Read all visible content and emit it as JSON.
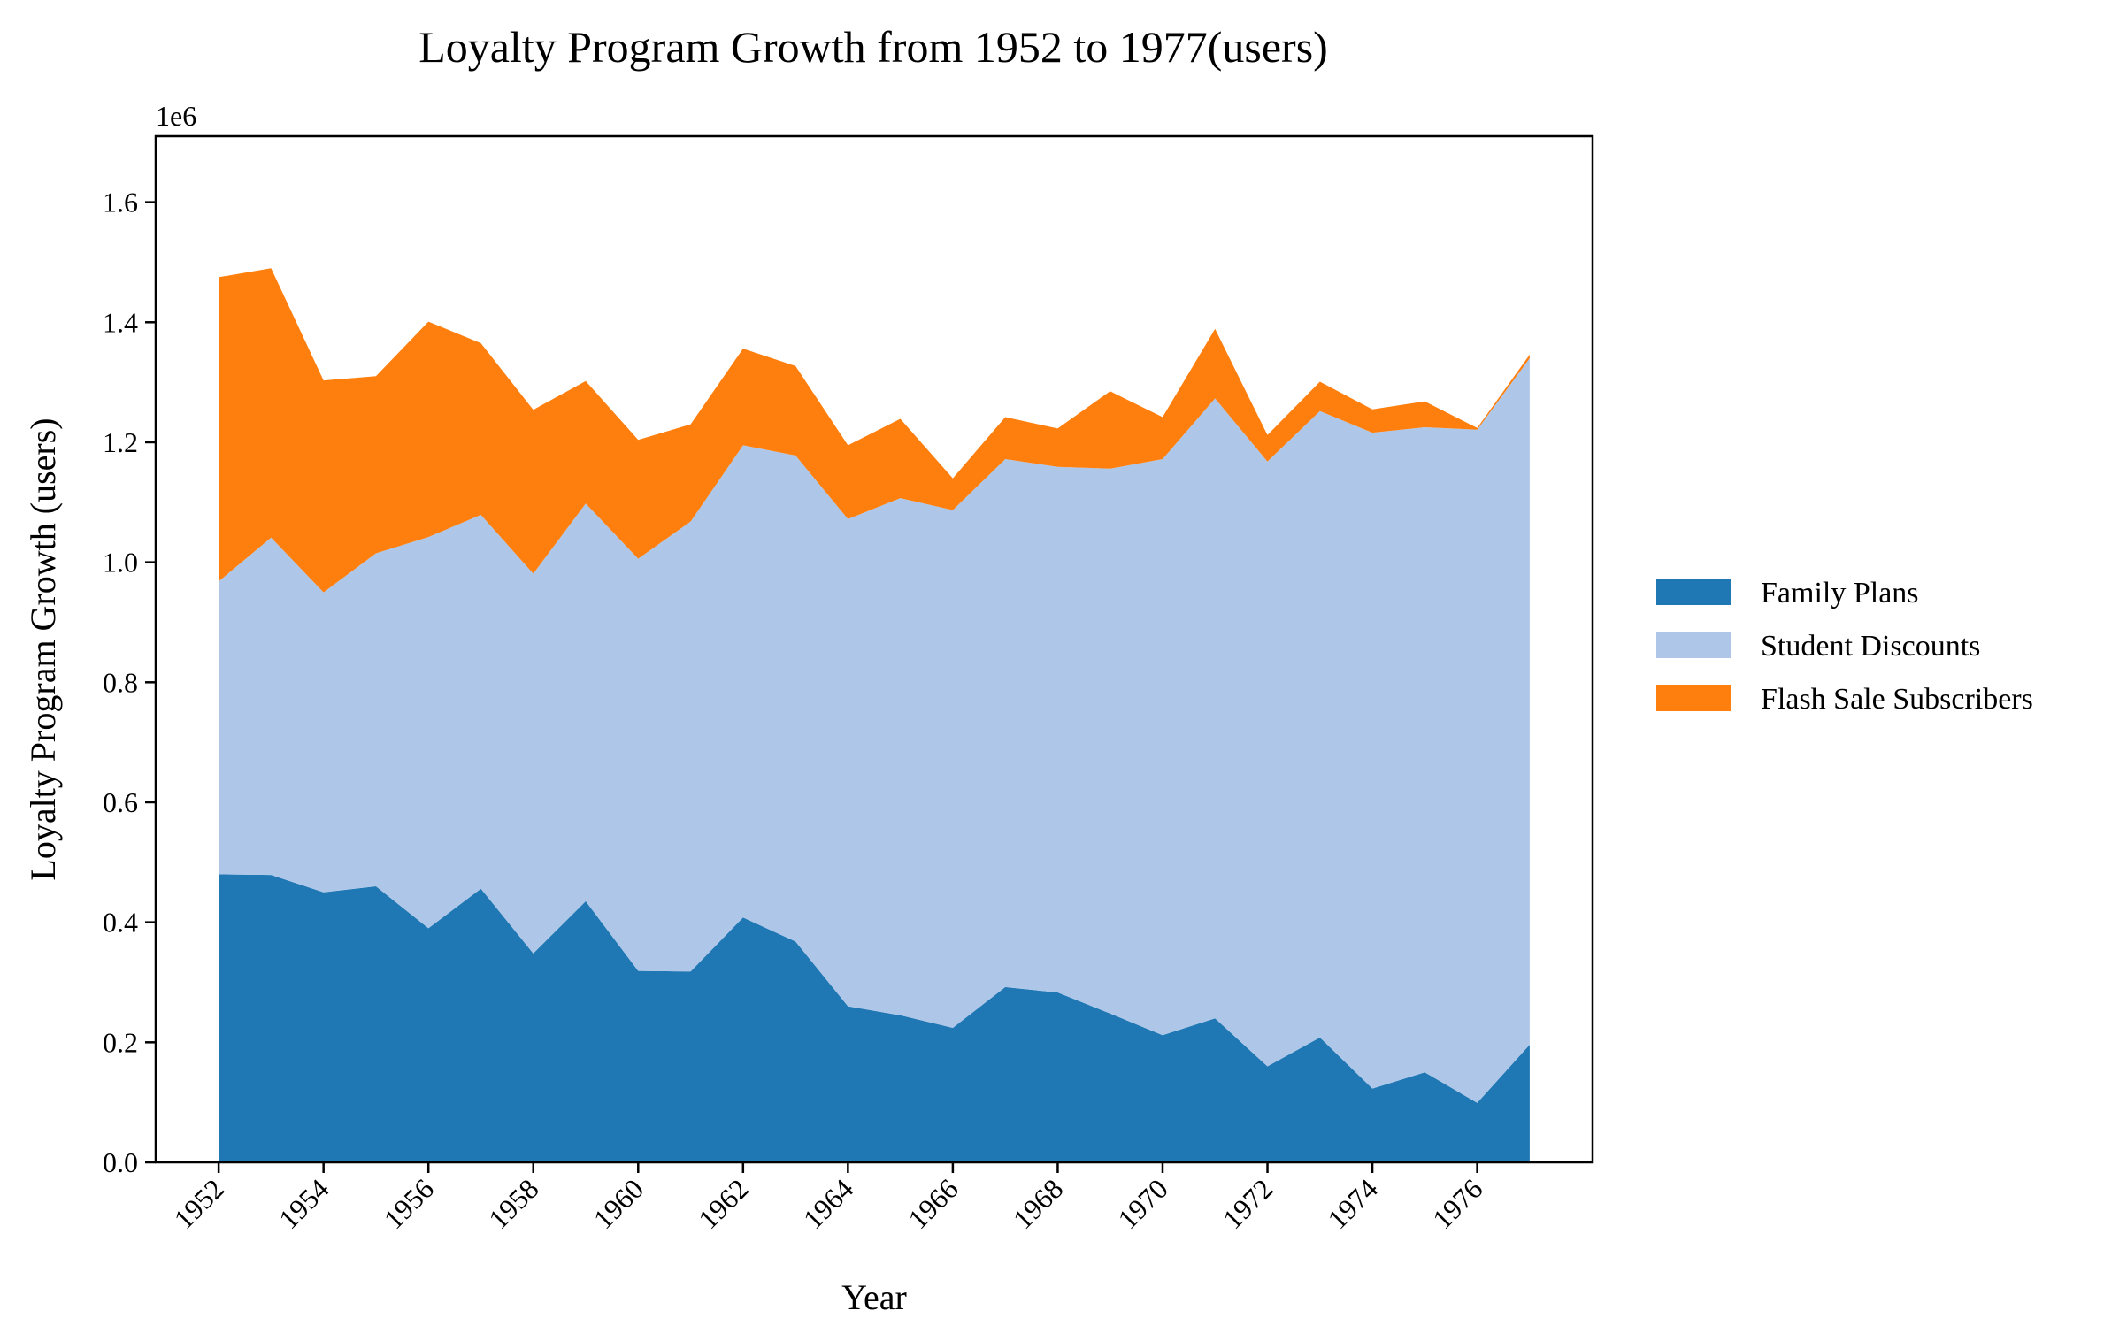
{
  "chart_data": {
    "type": "area",
    "stacked": true,
    "title": "Loyalty Program Growth from 1952 to 1977(users)",
    "xlabel": "Year",
    "ylabel": "Loyalty Program Growth (users)",
    "y_offset_text": "1e6",
    "x": [
      1952,
      1953,
      1954,
      1955,
      1956,
      1957,
      1958,
      1959,
      1960,
      1961,
      1962,
      1963,
      1964,
      1965,
      1966,
      1967,
      1968,
      1969,
      1970,
      1971,
      1972,
      1973,
      1974,
      1975,
      1976,
      1977
    ],
    "x_ticks": [
      1952,
      1954,
      1956,
      1958,
      1960,
      1962,
      1964,
      1966,
      1968,
      1970,
      1972,
      1974,
      1976
    ],
    "xlim": [
      1950.8,
      1978.2
    ],
    "y_ticks": [
      "0.0",
      "0.2",
      "0.4",
      "0.6",
      "0.8",
      "1.0",
      "1.2",
      "1.4",
      "1.6"
    ],
    "ylim": [
      0,
      1.71
    ],
    "legend_position": "center-right, outside plot",
    "grid": false,
    "series": [
      {
        "name": "Family Plans",
        "color": "#1f77b4",
        "values": [
          0.48,
          0.479,
          0.45,
          0.46,
          0.39,
          0.456,
          0.348,
          0.435,
          0.319,
          0.318,
          0.408,
          0.368,
          0.26,
          0.245,
          0.224,
          0.292,
          0.283,
          0.248,
          0.212,
          0.24,
          0.16,
          0.208,
          0.123,
          0.15,
          0.099,
          0.196
        ]
      },
      {
        "name": "Student Discounts",
        "color": "#aec7e8",
        "values": [
          0.488,
          0.562,
          0.5,
          0.555,
          0.652,
          0.623,
          0.633,
          0.663,
          0.687,
          0.75,
          0.787,
          0.81,
          0.812,
          0.862,
          0.863,
          0.88,
          0.876,
          0.908,
          0.96,
          1.033,
          1.008,
          1.044,
          1.093,
          1.075,
          1.122,
          1.144
        ]
      },
      {
        "name": "Flash Sale Subscribers",
        "color": "#ff7f0e",
        "values": [
          0.507,
          0.449,
          0.353,
          0.295,
          0.359,
          0.286,
          0.273,
          0.204,
          0.198,
          0.162,
          0.161,
          0.149,
          0.123,
          0.132,
          0.053,
          0.07,
          0.064,
          0.129,
          0.07,
          0.116,
          0.044,
          0.049,
          0.039,
          0.043,
          0.003,
          0.006
        ]
      }
    ]
  }
}
